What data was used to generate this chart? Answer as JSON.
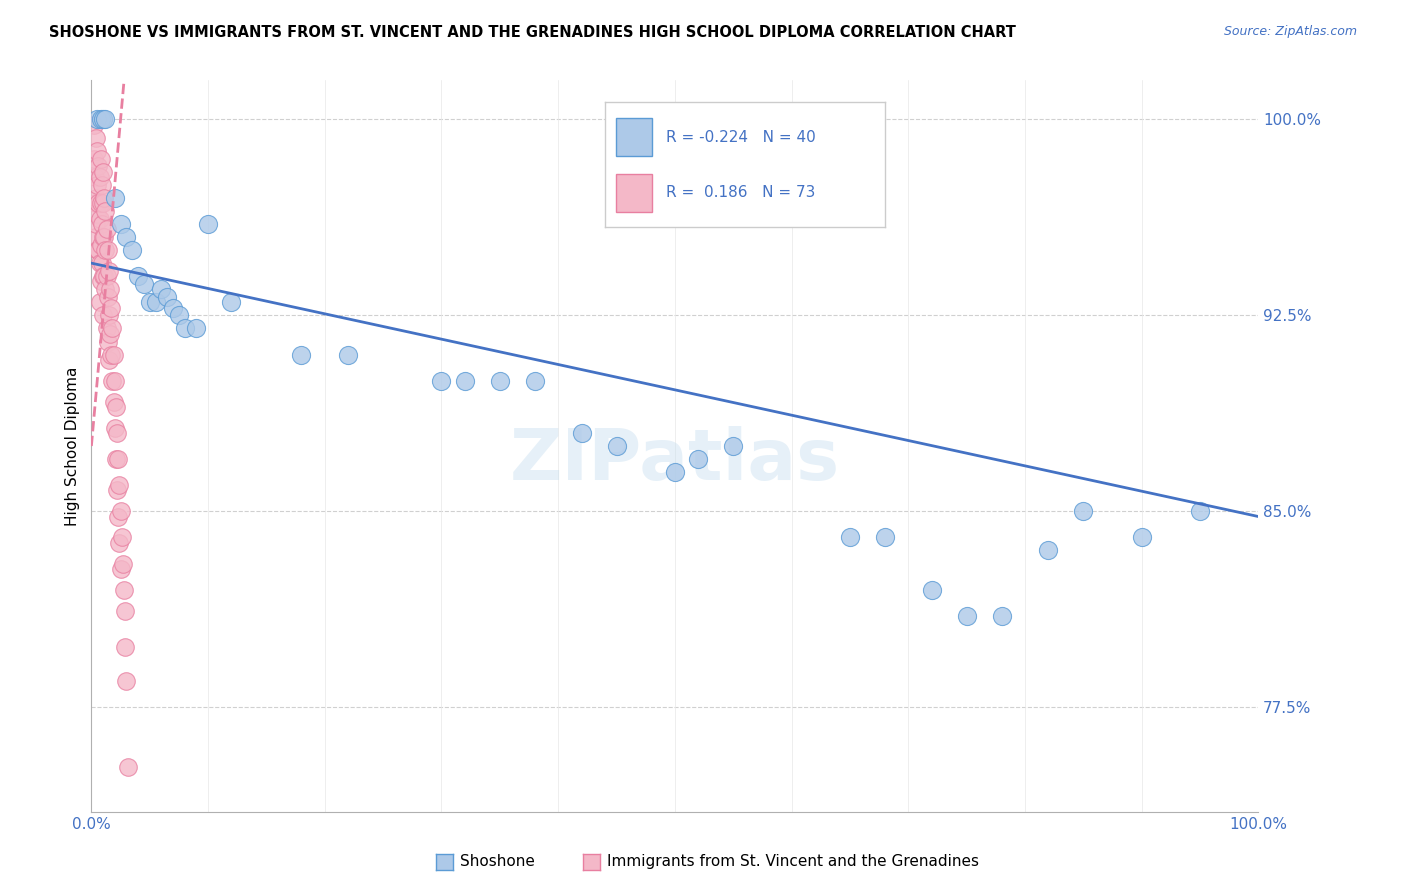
{
  "title": "SHOSHONE VS IMMIGRANTS FROM ST. VINCENT AND THE GRENADINES HIGH SCHOOL DIPLOMA CORRELATION CHART",
  "source": "Source: ZipAtlas.com",
  "ylabel": "High School Diploma",
  "xlim": [
    0.0,
    1.0
  ],
  "ylim": [
    0.735,
    1.015
  ],
  "yticks": [
    0.775,
    0.85,
    0.925,
    1.0
  ],
  "ytick_labels": [
    "77.5%",
    "85.0%",
    "92.5%",
    "100.0%"
  ],
  "xtick_positions": [
    0.0,
    0.1,
    0.2,
    0.3,
    0.4,
    0.5,
    0.6,
    0.7,
    0.8,
    0.9,
    1.0
  ],
  "xtick_labels": [
    "0.0%",
    "",
    "",
    "",
    "",
    "",
    "",
    "",
    "",
    "",
    "100.0%"
  ],
  "blue_color": "#adc9e8",
  "blue_edge": "#5b9bd5",
  "pink_color": "#f4b8c8",
  "pink_edge": "#e87fa0",
  "trend_blue_color": "#4472c4",
  "trend_pink_color": "#e87fa0",
  "R_blue": -0.224,
  "N_blue": 40,
  "R_pink": 0.186,
  "N_pink": 73,
  "watermark": "ZIPatlas",
  "blue_trend_y0": 0.945,
  "blue_trend_y1": 0.848,
  "pink_trend_x0": 0.0,
  "pink_trend_y0": 0.875,
  "pink_trend_x1": 0.028,
  "pink_trend_y1": 1.015,
  "blue_x": [
    0.005,
    0.008,
    0.01,
    0.012,
    0.02,
    0.025,
    0.03,
    0.035,
    0.04,
    0.045,
    0.05,
    0.055,
    0.06,
    0.065,
    0.07,
    0.075,
    0.08,
    0.09,
    0.1,
    0.12,
    0.18,
    0.22,
    0.3,
    0.32,
    0.35,
    0.38,
    0.42,
    0.45,
    0.5,
    0.52,
    0.55,
    0.65,
    0.68,
    0.72,
    0.75,
    0.78,
    0.82,
    0.85,
    0.9,
    0.95
  ],
  "blue_y": [
    1.0,
    1.0,
    1.0,
    1.0,
    0.97,
    0.96,
    0.955,
    0.95,
    0.94,
    0.937,
    0.93,
    0.93,
    0.935,
    0.932,
    0.928,
    0.925,
    0.92,
    0.92,
    0.96,
    0.93,
    0.91,
    0.91,
    0.9,
    0.9,
    0.9,
    0.9,
    0.88,
    0.875,
    0.865,
    0.87,
    0.875,
    0.84,
    0.84,
    0.82,
    0.81,
    0.81,
    0.835,
    0.85,
    0.84,
    0.85
  ],
  "pink_x": [
    0.002,
    0.002,
    0.003,
    0.003,
    0.003,
    0.004,
    0.004,
    0.004,
    0.005,
    0.005,
    0.005,
    0.005,
    0.006,
    0.006,
    0.006,
    0.007,
    0.007,
    0.007,
    0.007,
    0.008,
    0.008,
    0.008,
    0.008,
    0.009,
    0.009,
    0.009,
    0.01,
    0.01,
    0.01,
    0.01,
    0.01,
    0.011,
    0.011,
    0.011,
    0.012,
    0.012,
    0.012,
    0.013,
    0.013,
    0.013,
    0.014,
    0.014,
    0.014,
    0.015,
    0.015,
    0.015,
    0.016,
    0.016,
    0.017,
    0.017,
    0.018,
    0.018,
    0.019,
    0.019,
    0.02,
    0.02,
    0.021,
    0.021,
    0.022,
    0.022,
    0.023,
    0.023,
    0.024,
    0.024,
    0.025,
    0.025,
    0.026,
    0.027,
    0.028,
    0.029,
    0.029,
    0.03,
    0.031
  ],
  "pink_y": [
    0.998,
    0.985,
    0.978,
    0.968,
    0.955,
    0.993,
    0.97,
    0.96,
    0.988,
    0.975,
    0.964,
    0.95,
    0.982,
    0.968,
    0.95,
    0.978,
    0.962,
    0.945,
    0.93,
    0.985,
    0.968,
    0.952,
    0.938,
    0.975,
    0.96,
    0.945,
    0.98,
    0.968,
    0.955,
    0.94,
    0.925,
    0.97,
    0.955,
    0.94,
    0.965,
    0.95,
    0.935,
    0.958,
    0.94,
    0.92,
    0.95,
    0.932,
    0.915,
    0.942,
    0.925,
    0.908,
    0.935,
    0.918,
    0.928,
    0.91,
    0.92,
    0.9,
    0.91,
    0.892,
    0.9,
    0.882,
    0.89,
    0.87,
    0.88,
    0.858,
    0.87,
    0.848,
    0.86,
    0.838,
    0.85,
    0.828,
    0.84,
    0.83,
    0.82,
    0.812,
    0.798,
    0.785,
    0.752
  ]
}
